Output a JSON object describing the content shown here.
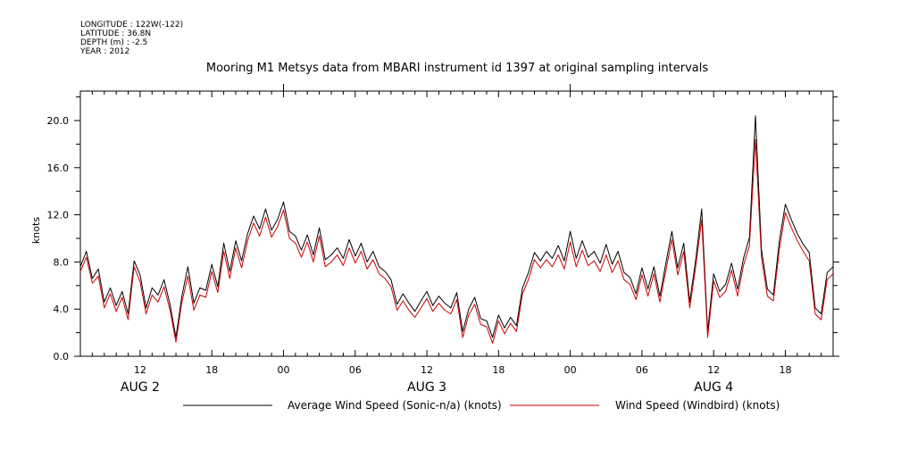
{
  "header": {
    "lines": [
      "LONGITUDE : 122W(-122)",
      "LATITUDE : 36.8N",
      "DEPTH (m) : -2.5",
      "YEAR : 2012"
    ]
  },
  "chart_data": {
    "type": "line",
    "title": "Mooring M1 Metsys data from MBARI instrument id 1397 at original sampling intervals",
    "ylabel": "knots",
    "xlabel": "",
    "ylim": [
      0,
      22.5
    ],
    "xlim_hours": [
      7,
      70
    ],
    "x_unit": "hours since 2012-08-02 00:00",
    "yticks": [
      "0.0",
      "4.0",
      "8.0",
      "12.0",
      "16.0",
      "20.0"
    ],
    "ytick_values": [
      0,
      4,
      8,
      12,
      16,
      20
    ],
    "xticks": [
      {
        "h": 12,
        "label": "12"
      },
      {
        "h": 18,
        "label": "18"
      },
      {
        "h": 24,
        "label": "00"
      },
      {
        "h": 30,
        "label": "06"
      },
      {
        "h": 36,
        "label": "12"
      },
      {
        "h": 42,
        "label": "18"
      },
      {
        "h": 48,
        "label": "00"
      },
      {
        "h": 54,
        "label": "06"
      },
      {
        "h": 60,
        "label": "12"
      },
      {
        "h": 66,
        "label": "18"
      }
    ],
    "day_labels": [
      {
        "h": 12,
        "label": "AUG  2"
      },
      {
        "h": 36,
        "label": "AUG  3"
      },
      {
        "h": 60,
        "label": "AUG  4"
      }
    ],
    "grid": false,
    "legend_position": "bottom",
    "series": [
      {
        "name": "Average Wind Speed (Sonic-n/a) (knots)",
        "color": "#000000",
        "points": [
          [
            7.0,
            7.6
          ],
          [
            7.5,
            8.9
          ],
          [
            8.0,
            6.6
          ],
          [
            8.5,
            7.4
          ],
          [
            9.0,
            4.6
          ],
          [
            9.5,
            5.8
          ],
          [
            10.0,
            4.3
          ],
          [
            10.5,
            5.5
          ],
          [
            11.0,
            3.6
          ],
          [
            11.5,
            8.1
          ],
          [
            12.0,
            6.9
          ],
          [
            12.5,
            4.1
          ],
          [
            13.0,
            5.8
          ],
          [
            13.5,
            5.2
          ],
          [
            14.0,
            6.5
          ],
          [
            14.5,
            4.4
          ],
          [
            15.0,
            1.6
          ],
          [
            15.5,
            5.1
          ],
          [
            16.0,
            7.6
          ],
          [
            16.5,
            4.5
          ],
          [
            17.0,
            5.8
          ],
          [
            17.5,
            5.6
          ],
          [
            18.0,
            7.8
          ],
          [
            18.5,
            5.9
          ],
          [
            19.0,
            9.6
          ],
          [
            19.5,
            7.2
          ],
          [
            20.0,
            9.8
          ],
          [
            20.5,
            8.1
          ],
          [
            21.0,
            10.4
          ],
          [
            21.5,
            11.9
          ],
          [
            22.0,
            10.8
          ],
          [
            22.5,
            12.5
          ],
          [
            23.0,
            10.7
          ],
          [
            23.5,
            11.6
          ],
          [
            24.0,
            13.1
          ],
          [
            24.5,
            10.6
          ],
          [
            25.0,
            10.2
          ],
          [
            25.5,
            9.0
          ],
          [
            26.0,
            10.3
          ],
          [
            26.5,
            8.6
          ],
          [
            27.0,
            10.9
          ],
          [
            27.5,
            8.2
          ],
          [
            28.0,
            8.6
          ],
          [
            28.5,
            9.2
          ],
          [
            29.0,
            8.3
          ],
          [
            29.5,
            9.9
          ],
          [
            30.0,
            8.5
          ],
          [
            30.5,
            9.6
          ],
          [
            31.0,
            8.0
          ],
          [
            31.5,
            8.9
          ],
          [
            32.0,
            7.6
          ],
          [
            32.5,
            7.2
          ],
          [
            33.0,
            6.5
          ],
          [
            33.5,
            4.4
          ],
          [
            34.0,
            5.3
          ],
          [
            34.5,
            4.5
          ],
          [
            35.0,
            3.8
          ],
          [
            35.5,
            4.7
          ],
          [
            36.0,
            5.5
          ],
          [
            36.5,
            4.3
          ],
          [
            37.0,
            5.1
          ],
          [
            37.5,
            4.5
          ],
          [
            38.0,
            4.1
          ],
          [
            38.5,
            5.4
          ],
          [
            39.0,
            2.1
          ],
          [
            39.5,
            4.0
          ],
          [
            40.0,
            5.0
          ],
          [
            40.5,
            3.2
          ],
          [
            41.0,
            3.0
          ],
          [
            41.5,
            1.6
          ],
          [
            42.0,
            3.5
          ],
          [
            42.5,
            2.4
          ],
          [
            43.0,
            3.3
          ],
          [
            43.5,
            2.6
          ],
          [
            44.0,
            5.8
          ],
          [
            44.5,
            7.1
          ],
          [
            45.0,
            8.8
          ],
          [
            45.5,
            8.1
          ],
          [
            46.0,
            8.9
          ],
          [
            46.5,
            8.3
          ],
          [
            47.0,
            9.4
          ],
          [
            47.5,
            8.1
          ],
          [
            48.0,
            10.6
          ],
          [
            48.5,
            8.3
          ],
          [
            49.0,
            9.8
          ],
          [
            49.5,
            8.4
          ],
          [
            50.0,
            8.9
          ],
          [
            50.5,
            7.9
          ],
          [
            51.0,
            9.5
          ],
          [
            51.5,
            7.8
          ],
          [
            52.0,
            8.9
          ],
          [
            52.5,
            7.1
          ],
          [
            53.0,
            6.7
          ],
          [
            53.5,
            5.3
          ],
          [
            54.0,
            7.5
          ],
          [
            54.5,
            5.7
          ],
          [
            55.0,
            7.6
          ],
          [
            55.5,
            5.1
          ],
          [
            56.0,
            7.9
          ],
          [
            56.5,
            10.6
          ],
          [
            57.0,
            7.5
          ],
          [
            57.5,
            9.6
          ],
          [
            58.0,
            4.6
          ],
          [
            58.5,
            8.2
          ],
          [
            59.0,
            12.5
          ],
          [
            59.5,
            2.1
          ],
          [
            60.0,
            7.0
          ],
          [
            60.5,
            5.5
          ],
          [
            61.0,
            6.1
          ],
          [
            61.5,
            7.9
          ],
          [
            62.0,
            5.7
          ],
          [
            62.5,
            8.3
          ],
          [
            63.0,
            10.1
          ],
          [
            63.5,
            20.4
          ],
          [
            64.0,
            9.1
          ],
          [
            64.5,
            5.7
          ],
          [
            65.0,
            5.2
          ],
          [
            65.5,
            9.8
          ],
          [
            66.0,
            12.9
          ],
          [
            66.5,
            11.6
          ],
          [
            67.0,
            10.4
          ],
          [
            67.5,
            9.5
          ],
          [
            68.0,
            8.8
          ],
          [
            68.5,
            4.1
          ],
          [
            69.0,
            3.6
          ],
          [
            69.5,
            7.1
          ],
          [
            70.0,
            7.6
          ]
        ]
      },
      {
        "name": "Wind Speed (Windbird) (knots)",
        "color": "#cc0000",
        "points": [
          [
            7.0,
            7.2
          ],
          [
            7.5,
            8.4
          ],
          [
            8.0,
            6.2
          ],
          [
            8.5,
            6.8
          ],
          [
            9.0,
            4.1
          ],
          [
            9.5,
            5.3
          ],
          [
            10.0,
            3.8
          ],
          [
            10.5,
            5.0
          ],
          [
            11.0,
            3.1
          ],
          [
            11.5,
            7.6
          ],
          [
            12.0,
            6.3
          ],
          [
            12.5,
            3.6
          ],
          [
            13.0,
            5.2
          ],
          [
            13.5,
            4.6
          ],
          [
            14.0,
            5.9
          ],
          [
            14.5,
            3.9
          ],
          [
            15.0,
            1.2
          ],
          [
            15.5,
            4.6
          ],
          [
            16.0,
            6.8
          ],
          [
            16.5,
            3.9
          ],
          [
            17.0,
            5.2
          ],
          [
            17.5,
            5.0
          ],
          [
            18.0,
            7.2
          ],
          [
            18.5,
            5.4
          ],
          [
            19.0,
            8.9
          ],
          [
            19.5,
            6.6
          ],
          [
            20.0,
            9.2
          ],
          [
            20.5,
            7.5
          ],
          [
            21.0,
            9.8
          ],
          [
            21.5,
            11.3
          ],
          [
            22.0,
            10.2
          ],
          [
            22.5,
            11.8
          ],
          [
            23.0,
            10.1
          ],
          [
            23.5,
            11.0
          ],
          [
            24.0,
            12.4
          ],
          [
            24.5,
            10.0
          ],
          [
            25.0,
            9.6
          ],
          [
            25.5,
            8.4
          ],
          [
            26.0,
            9.7
          ],
          [
            26.5,
            8.0
          ],
          [
            27.0,
            10.2
          ],
          [
            27.5,
            7.6
          ],
          [
            28.0,
            8.0
          ],
          [
            28.5,
            8.6
          ],
          [
            29.0,
            7.7
          ],
          [
            29.5,
            9.2
          ],
          [
            30.0,
            7.9
          ],
          [
            30.5,
            8.9
          ],
          [
            31.0,
            7.4
          ],
          [
            31.5,
            8.2
          ],
          [
            32.0,
            7.0
          ],
          [
            32.5,
            6.6
          ],
          [
            33.0,
            5.9
          ],
          [
            33.5,
            3.9
          ],
          [
            34.0,
            4.7
          ],
          [
            34.5,
            3.9
          ],
          [
            35.0,
            3.3
          ],
          [
            35.5,
            4.1
          ],
          [
            36.0,
            4.9
          ],
          [
            36.5,
            3.8
          ],
          [
            37.0,
            4.5
          ],
          [
            37.5,
            3.9
          ],
          [
            38.0,
            3.6
          ],
          [
            38.5,
            4.8
          ],
          [
            39.0,
            1.6
          ],
          [
            39.5,
            3.5
          ],
          [
            40.0,
            4.4
          ],
          [
            40.5,
            2.7
          ],
          [
            41.0,
            2.5
          ],
          [
            41.5,
            1.1
          ],
          [
            42.0,
            3.0
          ],
          [
            42.5,
            1.9
          ],
          [
            43.0,
            2.8
          ],
          [
            43.5,
            2.1
          ],
          [
            44.0,
            5.3
          ],
          [
            44.5,
            6.5
          ],
          [
            45.0,
            8.2
          ],
          [
            45.5,
            7.5
          ],
          [
            46.0,
            8.2
          ],
          [
            46.5,
            7.6
          ],
          [
            47.0,
            8.6
          ],
          [
            47.5,
            7.4
          ],
          [
            48.0,
            9.7
          ],
          [
            48.5,
            7.6
          ],
          [
            49.0,
            9.0
          ],
          [
            49.5,
            7.7
          ],
          [
            50.0,
            8.1
          ],
          [
            50.5,
            7.2
          ],
          [
            51.0,
            8.6
          ],
          [
            51.5,
            7.1
          ],
          [
            52.0,
            8.1
          ],
          [
            52.5,
            6.5
          ],
          [
            53.0,
            6.1
          ],
          [
            53.5,
            4.8
          ],
          [
            54.0,
            6.9
          ],
          [
            54.5,
            5.1
          ],
          [
            55.0,
            7.0
          ],
          [
            55.5,
            4.6
          ],
          [
            56.0,
            7.3
          ],
          [
            56.5,
            9.9
          ],
          [
            57.0,
            6.9
          ],
          [
            57.5,
            8.9
          ],
          [
            58.0,
            4.1
          ],
          [
            58.5,
            7.6
          ],
          [
            59.0,
            11.6
          ],
          [
            59.5,
            1.6
          ],
          [
            60.0,
            6.4
          ],
          [
            60.5,
            5.0
          ],
          [
            61.0,
            5.5
          ],
          [
            61.5,
            7.3
          ],
          [
            62.0,
            5.1
          ],
          [
            62.5,
            7.7
          ],
          [
            63.0,
            9.4
          ],
          [
            63.5,
            18.4
          ],
          [
            64.0,
            8.4
          ],
          [
            64.5,
            5.1
          ],
          [
            65.0,
            4.7
          ],
          [
            65.5,
            9.1
          ],
          [
            66.0,
            12.2
          ],
          [
            66.5,
            10.9
          ],
          [
            67.0,
            9.8
          ],
          [
            67.5,
            8.9
          ],
          [
            68.0,
            8.1
          ],
          [
            68.5,
            3.6
          ],
          [
            69.0,
            3.1
          ],
          [
            69.5,
            6.5
          ],
          [
            70.0,
            7.0
          ]
        ]
      }
    ]
  }
}
